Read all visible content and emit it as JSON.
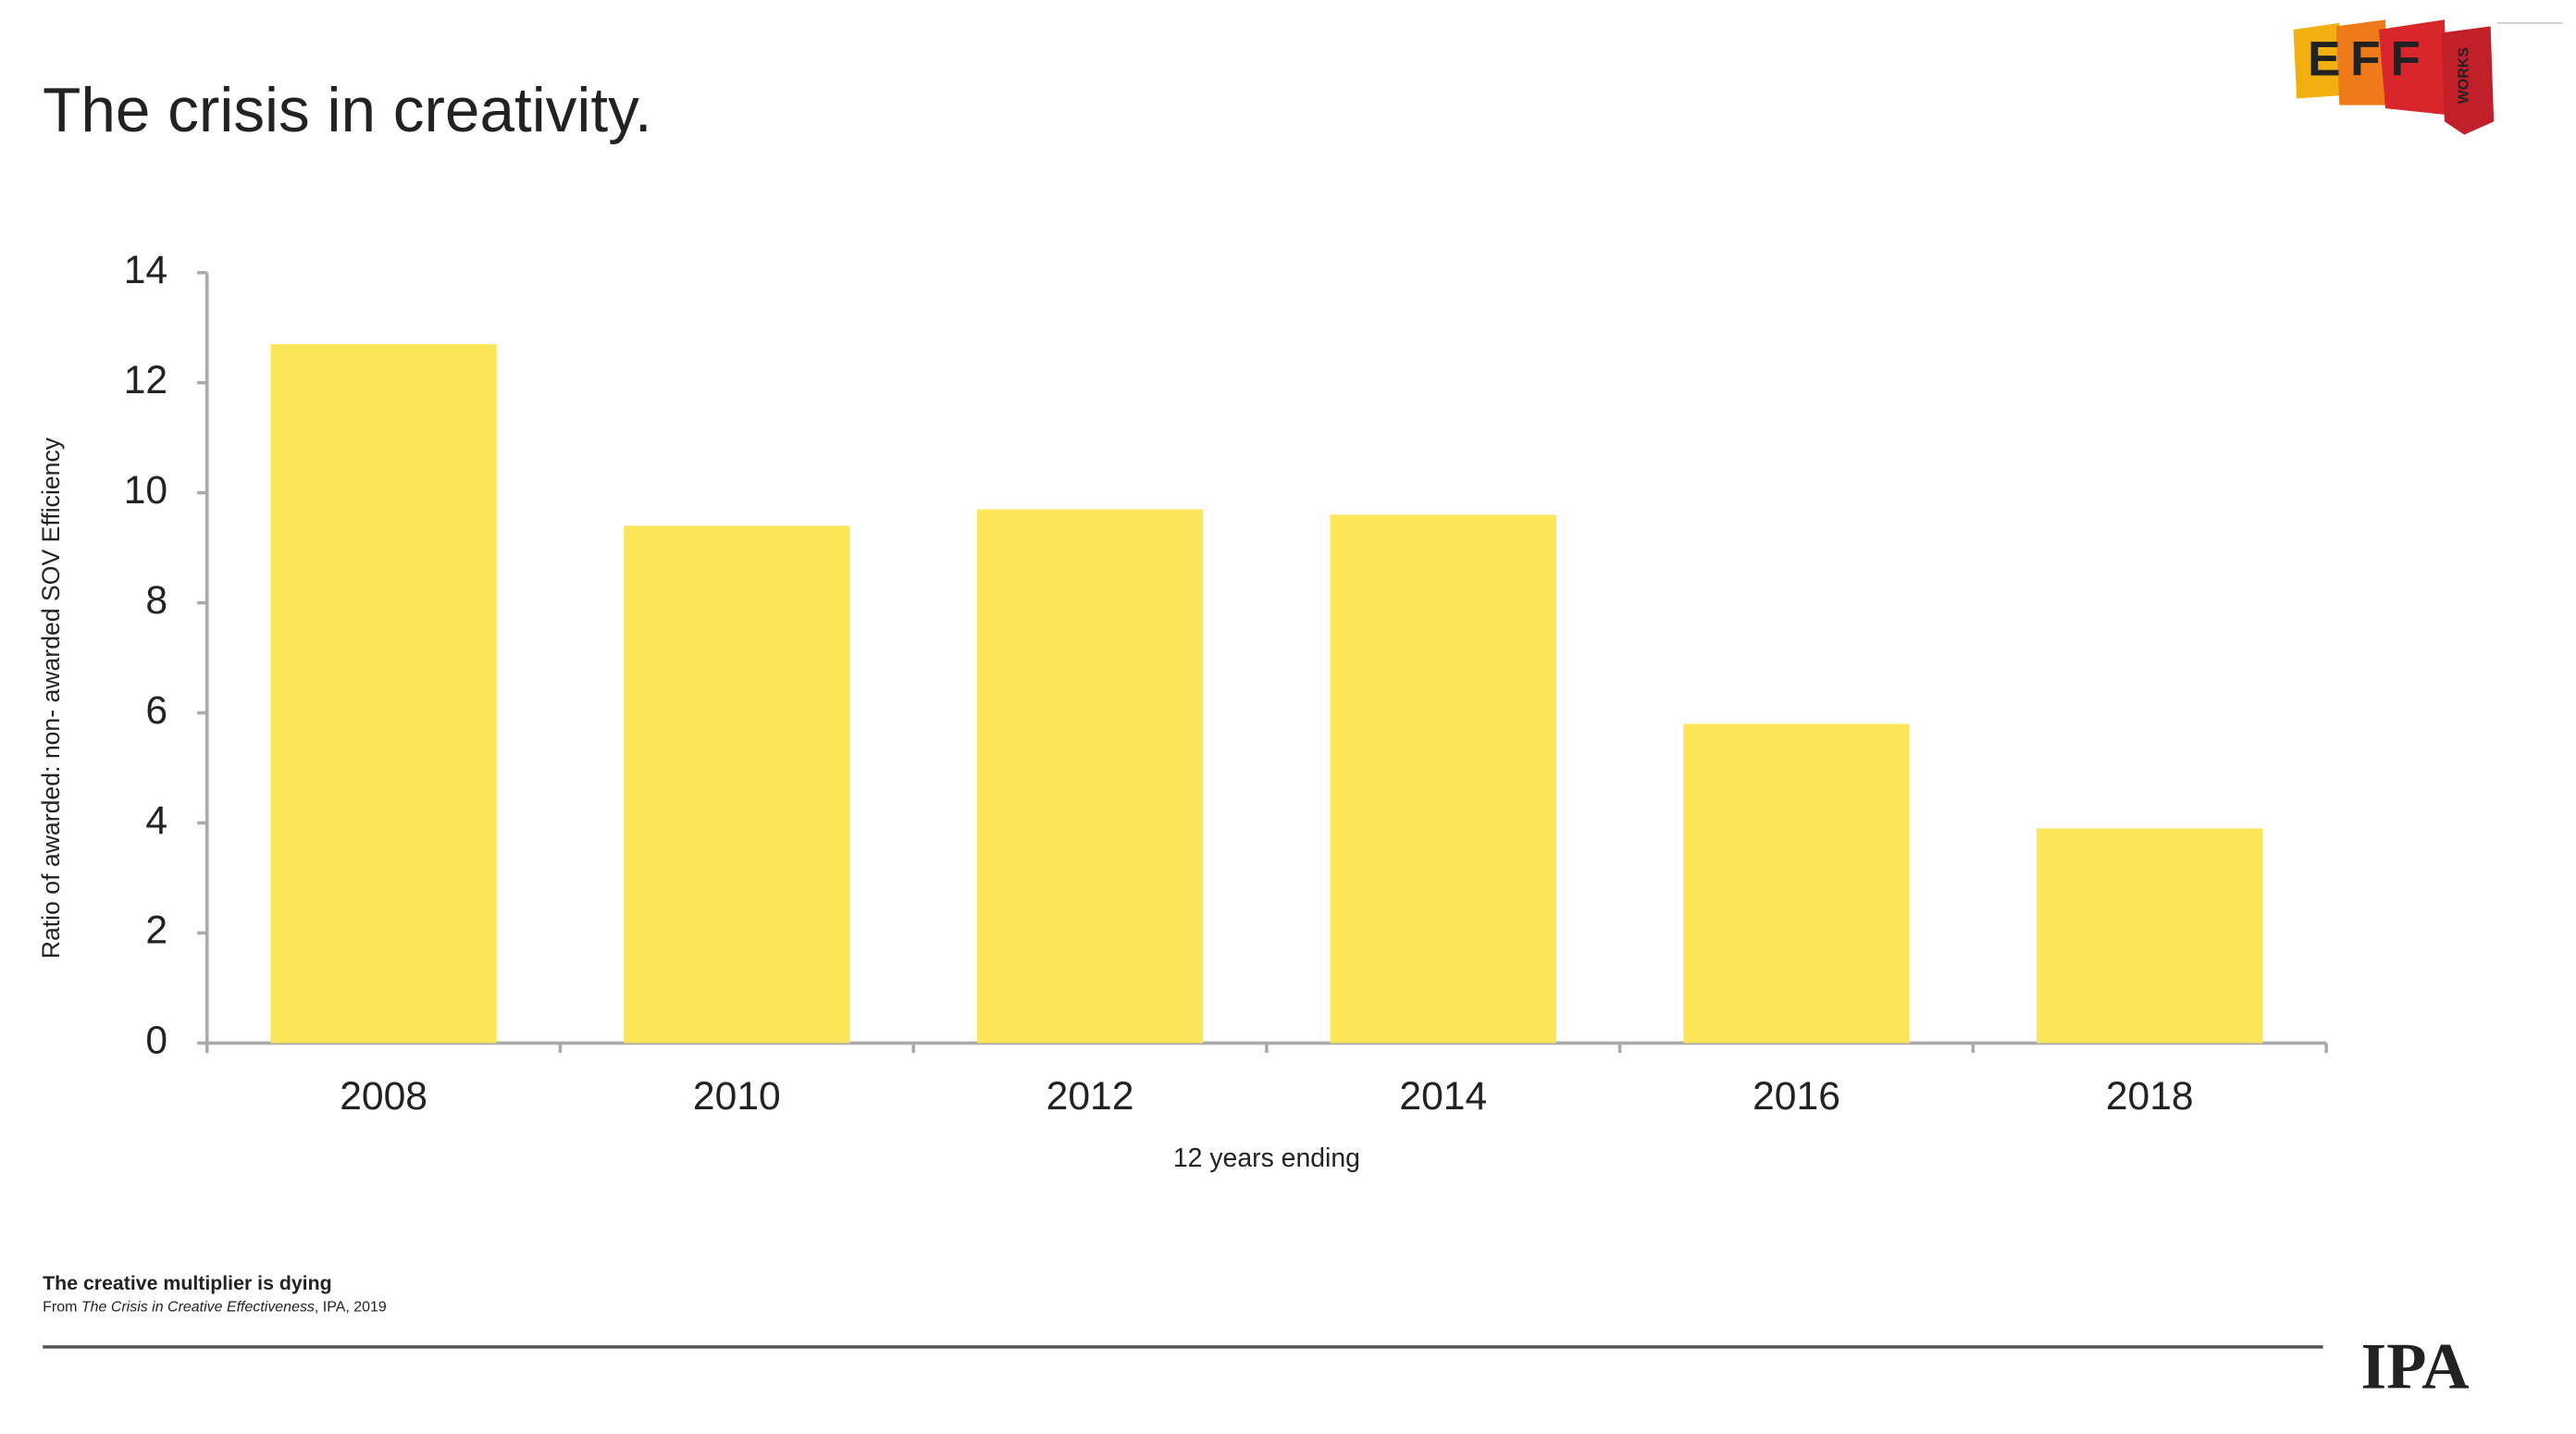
{
  "header": {
    "title": "The crisis in creativity."
  },
  "logos": {
    "eff": "EFF",
    "works": "WORKS",
    "ipa": "IPA"
  },
  "chart_data": {
    "type": "bar",
    "categories": [
      "2008",
      "2010",
      "2012",
      "2014",
      "2016",
      "2018"
    ],
    "values": [
      12.7,
      9.4,
      9.7,
      9.6,
      5.8,
      3.9
    ],
    "color": "#fde55a",
    "ylim": [
      0,
      14
    ],
    "yticks": [
      0,
      2,
      4,
      6,
      8,
      10,
      12,
      14
    ],
    "y_label": "Ratio of awarded: non- awarded SOV Efficiency",
    "x_label": "12 years ending",
    "grid": false
  },
  "footnote": {
    "headline": "The creative multiplier is dying",
    "source_prefix": "From ",
    "source_title": "The Crisis in Creative Effectiveness",
    "source_suffix": ", IPA, 2019"
  }
}
